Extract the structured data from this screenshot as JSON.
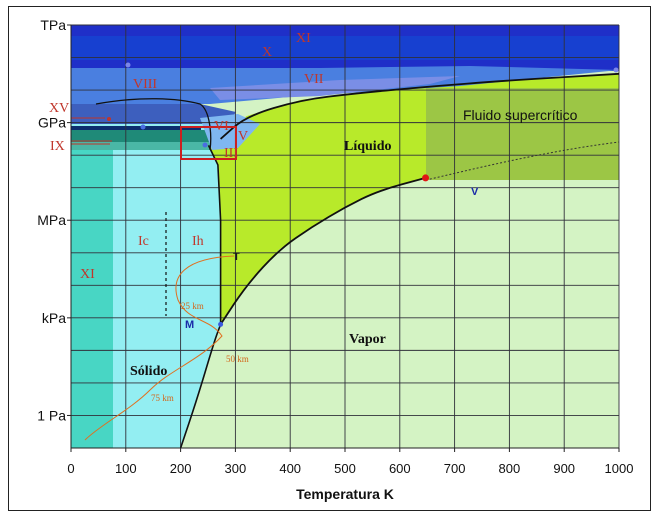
{
  "chart_data": {
    "type": "area",
    "title": "",
    "xlabel": "Temperatura K",
    "ylabel": "",
    "x_range": [
      0,
      1000
    ],
    "x_ticks": [
      0,
      100,
      200,
      300,
      400,
      500,
      600,
      700,
      800,
      900,
      1000
    ],
    "y_scale": "log",
    "y_range_pa": [
      0.1,
      1000000000000.0
    ],
    "y_ticks": [
      {
        "label": "TPa",
        "value_pa": 1000000000000.0
      },
      {
        "label": "GPa",
        "value_pa": 1000000000.0
      },
      {
        "label": "MPa",
        "value_pa": 1000000.0
      },
      {
        "label": "kPa",
        "value_pa": 1000.0
      },
      {
        "label": "1 Pa",
        "value_pa": 1
      }
    ],
    "grid": true,
    "region_labels": [
      {
        "text": "Líquido",
        "kind": "region"
      },
      {
        "text": "Fluido supercrítico",
        "kind": "fluid"
      },
      {
        "text": "Vapor",
        "kind": "region"
      },
      {
        "text": "Sólido",
        "kind": "region"
      }
    ],
    "ice_phases": [
      "XI",
      "X",
      "VIII",
      "VII",
      "XV",
      "IX",
      "VI",
      "V",
      "III",
      "Ic",
      "Ih",
      "XI"
    ],
    "point_labels": [
      "T",
      "M",
      "V"
    ],
    "depth_labels": [
      "25 km",
      "50 km",
      "75 km"
    ],
    "boundaries": {
      "sublimation_T": [
        200,
        230,
        260,
        273
      ],
      "sublimation_logP": [
        -1,
        0.5,
        2.2,
        2.8
      ],
      "vaporization_T": [
        273,
        320,
        380,
        440,
        500,
        560,
        647
      ],
      "vaporization_logP": [
        2.8,
        4.0,
        5.1,
        5.8,
        6.4,
        6.9,
        7.3
      ],
      "melting_T": [
        273,
        320,
        420,
        520,
        647,
        800,
        1000
      ],
      "melting_logP": [
        8.5,
        9.2,
        9.7,
        9.9,
        10.1,
        10.3,
        10.5
      ],
      "ice_ih_boundary_T": [
        273,
        273,
        268,
        251
      ],
      "ice_ih_boundary_logP": [
        2.8,
        6.0,
        7.7,
        8.3
      ]
    },
    "critical_point": {
      "T": 647,
      "logP": 7.3
    },
    "triple_point": {
      "T": 273,
      "logP": 2.8
    }
  },
  "colors": {
    "vapor": "#d4f3c4",
    "liquid": "#b8ea2a",
    "supercritical": "#9cc645",
    "solid": "#93eef2",
    "ice_xi_low": "#48d6c4",
    "ice_high1": "#1f2fc8",
    "ice_high2": "#1740d0",
    "ice_high3": "#4a7fe0",
    "ice_vii": "#7a8ee6",
    "ice_upper": "#6aa7e8",
    "phase_text": "#c0362b",
    "grid": "#30303a"
  },
  "labels": {
    "x_axis_title": "Temperatura K",
    "liquid": "Líquido",
    "supercritical": "Fluido supercrítico",
    "vapor": "Vapor",
    "solid": "Sólido",
    "ph_XI_top": "XI",
    "ph_X": "X",
    "ph_VIII": "VIII",
    "ph_VII": "VII",
    "ph_XV": "XV",
    "ph_IX": "IX",
    "ph_VI": "VI",
    "ph_V": "V",
    "ph_III": "III",
    "ph_Ic": "Ic",
    "ph_Ih": "Ih",
    "ph_XI_low": "XI",
    "pt_T": "T",
    "pt_M": "M",
    "pt_V": "V",
    "d25": "25 km",
    "d50": "50 km",
    "d75": "75 km"
  }
}
